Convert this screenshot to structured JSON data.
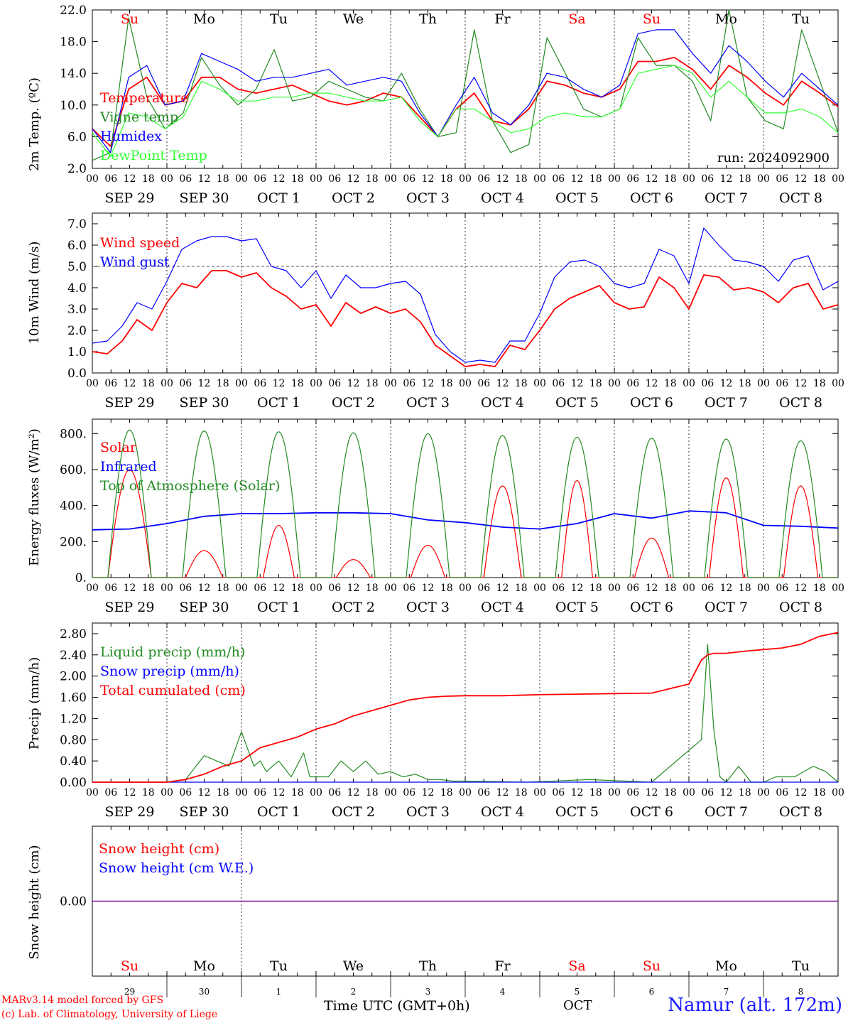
{
  "days_x": [
    "Su",
    "Mo",
    "Tu",
    "We",
    "Th",
    "Fr",
    "Sa",
    "Su",
    "Mo",
    "Tu"
  ],
  "day_colors": [
    "#ff0000",
    "#000000",
    "#000000",
    "#000000",
    "#000000",
    "#000000",
    "#ff0000",
    "#ff0000",
    "#000000",
    "#000000"
  ],
  "date_labels": [
    "SEP 29",
    "SEP 30",
    "OCT  1",
    "OCT  2",
    "OCT  3",
    "OCT  4",
    "OCT  5",
    "OCT  6",
    "OCT  7",
    "OCT  8"
  ],
  "hour_labels": [
    "00",
    "06",
    "12",
    "18"
  ],
  "last_hour_label": "00",
  "bottom_day_numbers": [
    "29",
    "30",
    "1",
    "2",
    "3",
    "4",
    "5",
    "6",
    "7",
    "8"
  ],
  "footer": {
    "credit_line1": "MARv3.14 model forced by GFS",
    "credit_line2": "(c) Lab. of Climatology, University of Liege",
    "x_title": "Time UTC (GMT+0h)",
    "month": "OCT",
    "station": "Namur (alt. 172m)"
  },
  "chart_data": [
    {
      "type": "line",
      "ylabel": "2m Temp. (ºC)",
      "ylim": [
        2,
        22
      ],
      "yticks": [
        "2.0",
        "6.0",
        "10.0",
        "14.0",
        "18.0",
        "22.0"
      ],
      "ytick_values": [
        2,
        6,
        10,
        14,
        18,
        22
      ],
      "annotation": "run: 2024092900",
      "x_unit": "hours since Sep 29 00 UTC, 6-hourly",
      "series": [
        {
          "name": "Temperature",
          "color": "#ff0000",
          "values": [
            7.0,
            4.8,
            12.0,
            13.5,
            10.0,
            10.5,
            13.5,
            13.5,
            12.0,
            11.5,
            12.0,
            12.5,
            11.5,
            10.5,
            10.0,
            10.5,
            11.5,
            11.0,
            8.5,
            6.0,
            9.5,
            11.5,
            8.0,
            7.5,
            9.5,
            13.0,
            12.5,
            11.5,
            11.0,
            12.0,
            15.5,
            15.5,
            16.0,
            14.5,
            12.0,
            15.0,
            13.5,
            11.5,
            10.0,
            13.0,
            11.5,
            9.8
          ]
        },
        {
          "name": "Vigne temp",
          "color": "#228b22",
          "values": [
            3.0,
            4.0,
            21.0,
            11.0,
            7.0,
            9.0,
            16.0,
            12.5,
            10.0,
            12.0,
            17.0,
            10.5,
            11.0,
            13.0,
            12.0,
            11.0,
            10.5,
            14.0,
            9.5,
            6.0,
            6.5,
            19.5,
            8.0,
            4.0,
            5.0,
            18.5,
            14.0,
            9.5,
            8.5,
            9.5,
            18.5,
            15.0,
            15.0,
            13.0,
            8.0,
            22.0,
            11.0,
            8.0,
            7.0,
            19.5,
            13.0,
            6.5
          ]
        },
        {
          "name": "Humidex",
          "color": "#0000ff",
          "values": [
            7.0,
            4.0,
            13.5,
            15.0,
            10.0,
            10.5,
            16.5,
            15.5,
            14.5,
            13.0,
            13.5,
            13.5,
            14.0,
            14.5,
            12.5,
            13.0,
            13.5,
            13.0,
            9.0,
            6.0,
            10.0,
            13.5,
            9.0,
            7.5,
            10.0,
            14.0,
            13.5,
            12.0,
            11.0,
            12.5,
            19.0,
            19.5,
            19.5,
            16.5,
            14.0,
            17.5,
            15.5,
            13.0,
            11.0,
            14.0,
            12.0,
            10.0
          ]
        },
        {
          "name": "DewPoint Temp",
          "color": "#33ff33",
          "values": [
            6.5,
            3.5,
            9.0,
            8.5,
            7.0,
            8.5,
            13.0,
            12.0,
            10.5,
            10.5,
            11.0,
            11.0,
            11.5,
            11.5,
            11.0,
            10.5,
            10.5,
            11.0,
            8.0,
            6.0,
            9.5,
            9.5,
            8.0,
            6.5,
            7.0,
            8.5,
            9.0,
            8.5,
            8.5,
            9.5,
            14.0,
            14.5,
            15.0,
            14.0,
            11.0,
            13.0,
            11.0,
            9.0,
            9.0,
            9.5,
            8.5,
            6.5
          ]
        }
      ]
    },
    {
      "type": "line",
      "ylabel": "10m Wind (m/s)",
      "ylim": [
        0,
        7.5
      ],
      "yticks": [
        "0.0",
        "1.0",
        "2.0",
        "3.0",
        "4.0",
        "5.0",
        "6.0",
        "7.0"
      ],
      "ytick_values": [
        0,
        1,
        2,
        3,
        4,
        5,
        6,
        7
      ],
      "reference_line": 5.0,
      "series": [
        {
          "name": "Wind speed",
          "color": "#ff0000",
          "values": [
            1.0,
            0.9,
            1.5,
            2.5,
            2.0,
            3.3,
            4.2,
            4.0,
            4.8,
            4.8,
            4.5,
            4.7,
            4.0,
            3.6,
            3.0,
            3.2,
            2.2,
            3.3,
            2.8,
            3.1,
            2.8,
            3.0,
            2.4,
            1.3,
            0.8,
            0.3,
            0.4,
            0.3,
            1.3,
            1.1,
            2.0,
            3.0,
            3.5,
            3.8,
            4.1,
            3.3,
            3.0,
            3.1,
            4.5,
            4.0,
            3.0,
            4.6,
            4.5,
            3.9,
            4.0,
            3.8,
            3.3,
            4.0,
            4.2,
            3.0,
            3.2
          ]
        },
        {
          "name": "Wind gust",
          "color": "#0000ff",
          "values": [
            1.4,
            1.5,
            2.2,
            3.3,
            3.0,
            4.3,
            5.8,
            6.2,
            6.4,
            6.4,
            6.2,
            6.3,
            5.0,
            4.8,
            4.0,
            4.8,
            3.5,
            4.6,
            4.0,
            4.0,
            4.2,
            4.3,
            3.7,
            1.8,
            1.0,
            0.5,
            0.6,
            0.5,
            1.5,
            1.5,
            2.8,
            4.5,
            5.2,
            5.3,
            5.0,
            4.2,
            4.0,
            4.2,
            5.8,
            5.5,
            4.2,
            6.8,
            6.0,
            5.3,
            5.2,
            5.0,
            4.3,
            5.3,
            5.5,
            3.9,
            4.3
          ]
        }
      ]
    },
    {
      "type": "line",
      "ylabel": "Energy fluxes (W/m²)",
      "ylim": [
        0,
        880
      ],
      "yticks": [
        "0.",
        "200.",
        "400.",
        "600.",
        "800."
      ],
      "ytick_values": [
        0,
        200,
        400,
        600,
        800
      ],
      "series": [
        {
          "name": "Solar",
          "color": "#ff0000",
          "peaks": [
            600,
            150,
            290,
            100,
            180,
            510,
            540,
            220,
            555,
            510
          ],
          "peak_width_h": [
            14,
            12,
            10,
            11,
            11,
            12,
            10,
            11,
            11,
            11
          ]
        },
        {
          "name": "Infrared",
          "color": "#0000ff",
          "x_hours": [
            0,
            12,
            24,
            36,
            48,
            60,
            72,
            84,
            96,
            108,
            120,
            132,
            144,
            156,
            168,
            180,
            192,
            204,
            216,
            228,
            240
          ],
          "values": [
            265,
            270,
            300,
            340,
            355,
            355,
            360,
            360,
            355,
            320,
            305,
            280,
            270,
            300,
            355,
            330,
            370,
            360,
            290,
            285,
            275
          ]
        },
        {
          "name": "Top of Atmosphere (Solar)",
          "color": "#228b22",
          "peaks": [
            820,
            815,
            810,
            805,
            800,
            790,
            780,
            775,
            770,
            760
          ],
          "peak_width_h": [
            14,
            14,
            14,
            14,
            14,
            14,
            14,
            14,
            14,
            14
          ]
        }
      ]
    },
    {
      "type": "line",
      "ylabel": "Precip (mm/h)",
      "ylim": [
        0,
        3.0
      ],
      "yticks": [
        "0.00",
        "0.40",
        "0.80",
        "1.20",
        "1.60",
        "2.00",
        "2.40",
        "2.80"
      ],
      "ytick_values": [
        0,
        0.4,
        0.8,
        1.2,
        1.6,
        2.0,
        2.4,
        2.8
      ],
      "series": [
        {
          "name": "Liquid precip (mm/h)",
          "color": "#228b22",
          "x_hours": [
            0,
            24,
            30,
            36,
            40,
            44,
            48,
            52,
            54,
            56,
            60,
            64,
            68,
            70,
            72,
            76,
            80,
            84,
            88,
            92,
            96,
            100,
            104,
            108,
            112,
            116,
            120,
            140,
            160,
            180,
            196,
            198,
            200,
            202,
            204,
            208,
            212,
            216,
            220,
            226,
            232,
            236,
            240
          ],
          "values": [
            0,
            0,
            0.05,
            0.5,
            0.4,
            0.3,
            0.95,
            0.3,
            0.4,
            0.2,
            0.4,
            0.1,
            0.55,
            0.1,
            0.1,
            0.1,
            0.4,
            0.2,
            0.4,
            0.15,
            0.2,
            0.1,
            0.15,
            0.05,
            0.05,
            0.02,
            0.02,
            0,
            0.05,
            0,
            0.8,
            2.6,
            1.0,
            0.1,
            0,
            0.3,
            0,
            0,
            0.1,
            0.1,
            0.3,
            0.2,
            0
          ]
        },
        {
          "name": "Snow precip (mm/h)",
          "color": "#0000ff",
          "x_hours": [
            0,
            240
          ],
          "values": [
            0,
            0
          ]
        },
        {
          "name": "Total cumulated (cm)",
          "color": "#ff0000",
          "x_hours": [
            0,
            24,
            30,
            36,
            42,
            48,
            54,
            60,
            66,
            72,
            78,
            84,
            90,
            96,
            102,
            108,
            114,
            120,
            132,
            144,
            156,
            168,
            180,
            192,
            196,
            198,
            200,
            204,
            210,
            216,
            222,
            228,
            234,
            240
          ],
          "values": [
            0,
            0,
            0.05,
            0.15,
            0.3,
            0.4,
            0.65,
            0.75,
            0.85,
            1.0,
            1.1,
            1.25,
            1.35,
            1.45,
            1.55,
            1.6,
            1.62,
            1.63,
            1.63,
            1.65,
            1.66,
            1.67,
            1.68,
            1.85,
            2.3,
            2.4,
            2.43,
            2.43,
            2.47,
            2.5,
            2.53,
            2.6,
            2.75,
            2.82
          ]
        }
      ]
    },
    {
      "type": "line",
      "ylabel": "Snow height (cm)",
      "ylim": [
        -1,
        1
      ],
      "yticks": [
        "0.00"
      ],
      "ytick_values": [
        0
      ],
      "series": [
        {
          "name": "Snow height (cm)",
          "color": "#ff0000",
          "x_hours": [
            0,
            240
          ],
          "values": [
            0,
            0
          ]
        },
        {
          "name": "Snow height (cm W.E.)",
          "color": "#0000ff",
          "x_hours": [
            0,
            240
          ],
          "values": [
            0,
            0
          ]
        }
      ]
    }
  ]
}
